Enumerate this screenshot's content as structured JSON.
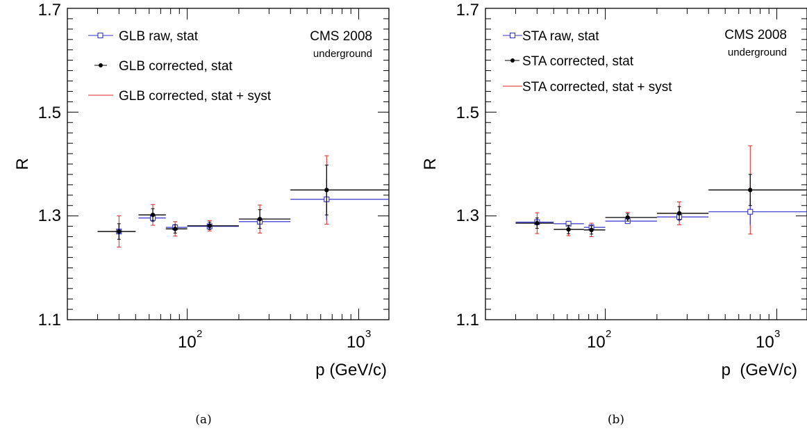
{
  "colors": {
    "raw": "#3333cc",
    "corrected": "#000000",
    "syst": "#dd2222"
  },
  "panels": [
    {
      "caption": "(a)",
      "label_main": "CMS 2008",
      "label_sub": "underground",
      "legend": [
        "GLB raw, stat",
        "GLB corrected, stat",
        "GLB corrected, stat + syst"
      ]
    },
    {
      "caption": "(b)",
      "label_main": "CMS 2008",
      "label_sub": "underground",
      "legend": [
        "STA raw, stat",
        "STA corrected, stat",
        "STA corrected, stat + syst"
      ]
    }
  ],
  "chart_data": [
    {
      "type": "scatter",
      "xlabel": "p (GeV/c)",
      "ylabel": "R",
      "xscale": "log",
      "xlim": [
        20,
        1500
      ],
      "ylim": [
        1.1,
        1.7
      ],
      "x_ticks": [
        {
          "base": "10",
          "exp": "2"
        },
        {
          "base": "10",
          "exp": "3"
        }
      ],
      "y_ticks": [
        "1.1",
        "1.3",
        "1.5",
        "1.7"
      ],
      "series": [
        {
          "name": "GLB raw, stat",
          "points": [
            {
              "x": 40,
              "xlo": 30,
              "xhi": 50,
              "y": 1.27,
              "e": 0.013
            },
            {
              "x": 63,
              "xlo": 52,
              "xhi": 75,
              "y": 1.296,
              "e": 0.009
            },
            {
              "x": 85,
              "xlo": 75,
              "xhi": 100,
              "y": 1.278,
              "e": 0.007
            },
            {
              "x": 135,
              "xlo": 100,
              "xhi": 200,
              "y": 1.28,
              "e": 0.006
            },
            {
              "x": 265,
              "xlo": 200,
              "xhi": 400,
              "y": 1.289,
              "e": 0.012
            },
            {
              "x": 650,
              "xlo": 400,
              "xhi": 1500,
              "y": 1.332,
              "e": 0.04
            }
          ]
        },
        {
          "name": "GLB corrected, stat",
          "points": [
            {
              "x": 40,
              "xlo": 30,
              "xhi": 50,
              "y": 1.27,
              "e": 0.015
            },
            {
              "x": 63,
              "xlo": 52,
              "xhi": 75,
              "y": 1.302,
              "e": 0.012
            },
            {
              "x": 85,
              "xlo": 75,
              "xhi": 100,
              "y": 1.275,
              "e": 0.008
            },
            {
              "x": 135,
              "xlo": 100,
              "xhi": 200,
              "y": 1.281,
              "e": 0.007
            },
            {
              "x": 265,
              "xlo": 200,
              "xhi": 400,
              "y": 1.294,
              "e": 0.018
            },
            {
              "x": 650,
              "xlo": 400,
              "xhi": 1500,
              "y": 1.35,
              "e": 0.048
            }
          ]
        },
        {
          "name": "GLB corrected, stat + syst",
          "points": [
            {
              "x": 40,
              "xlo": 30,
              "xhi": 50,
              "y": 1.27,
              "e": 0.03
            },
            {
              "x": 63,
              "xlo": 52,
              "xhi": 75,
              "y": 1.302,
              "e": 0.02
            },
            {
              "x": 85,
              "xlo": 75,
              "xhi": 100,
              "y": 1.275,
              "e": 0.014
            },
            {
              "x": 135,
              "xlo": 100,
              "xhi": 200,
              "y": 1.281,
              "e": 0.01
            },
            {
              "x": 265,
              "xlo": 200,
              "xhi": 400,
              "y": 1.294,
              "e": 0.027
            },
            {
              "x": 650,
              "xlo": 400,
              "xhi": 1500,
              "y": 1.35,
              "e": 0.066
            }
          ]
        }
      ]
    },
    {
      "type": "scatter",
      "xlabel": "p  (GeV/c)",
      "ylabel": "R",
      "xscale": "log",
      "xlim": [
        20,
        1500
      ],
      "ylim": [
        1.1,
        1.7
      ],
      "x_ticks": [
        {
          "base": "10",
          "exp": "2"
        },
        {
          "base": "10",
          "exp": "3"
        }
      ],
      "y_ticks": [
        "1.1",
        "1.3",
        "1.5",
        "1.7"
      ],
      "series": [
        {
          "name": "STA raw, stat",
          "points": [
            {
              "x": 40,
              "xlo": 30,
              "xhi": 50,
              "y": 1.288,
              "e": 0.006
            },
            {
              "x": 61,
              "xlo": 50,
              "xhi": 75,
              "y": 1.285,
              "e": 0.005
            },
            {
              "x": 83,
              "xlo": 75,
              "xhi": 100,
              "y": 1.278,
              "e": 0.005
            },
            {
              "x": 135,
              "xlo": 100,
              "xhi": 200,
              "y": 1.29,
              "e": 0.004
            },
            {
              "x": 270,
              "xlo": 200,
              "xhi": 400,
              "y": 1.298,
              "e": 0.01
            },
            {
              "x": 700,
              "xlo": 400,
              "xhi": 1500,
              "y": 1.308,
              "e": 0.025
            }
          ]
        },
        {
          "name": "STA corrected, stat",
          "points": [
            {
              "x": 40,
              "xlo": 30,
              "xhi": 50,
              "y": 1.286,
              "e": 0.01
            },
            {
              "x": 61,
              "xlo": 50,
              "xhi": 75,
              "y": 1.274,
              "e": 0.008
            },
            {
              "x": 83,
              "xlo": 75,
              "xhi": 100,
              "y": 1.273,
              "e": 0.008
            },
            {
              "x": 135,
              "xlo": 100,
              "xhi": 200,
              "y": 1.297,
              "e": 0.007
            },
            {
              "x": 270,
              "xlo": 200,
              "xhi": 400,
              "y": 1.305,
              "e": 0.013
            },
            {
              "x": 700,
              "xlo": 400,
              "xhi": 1500,
              "y": 1.35,
              "e": 0.03
            }
          ]
        },
        {
          "name": "STA corrected, stat + syst",
          "points": [
            {
              "x": 40,
              "xlo": 30,
              "xhi": 50,
              "y": 1.286,
              "e": 0.02
            },
            {
              "x": 61,
              "xlo": 50,
              "xhi": 75,
              "y": 1.274,
              "e": 0.012
            },
            {
              "x": 83,
              "xlo": 75,
              "xhi": 100,
              "y": 1.273,
              "e": 0.013
            },
            {
              "x": 135,
              "xlo": 100,
              "xhi": 200,
              "y": 1.297,
              "e": 0.01
            },
            {
              "x": 270,
              "xlo": 200,
              "xhi": 400,
              "y": 1.305,
              "e": 0.022
            },
            {
              "x": 700,
              "xlo": 400,
              "xhi": 1500,
              "y": 1.35,
              "e": 0.085
            }
          ]
        }
      ]
    }
  ]
}
